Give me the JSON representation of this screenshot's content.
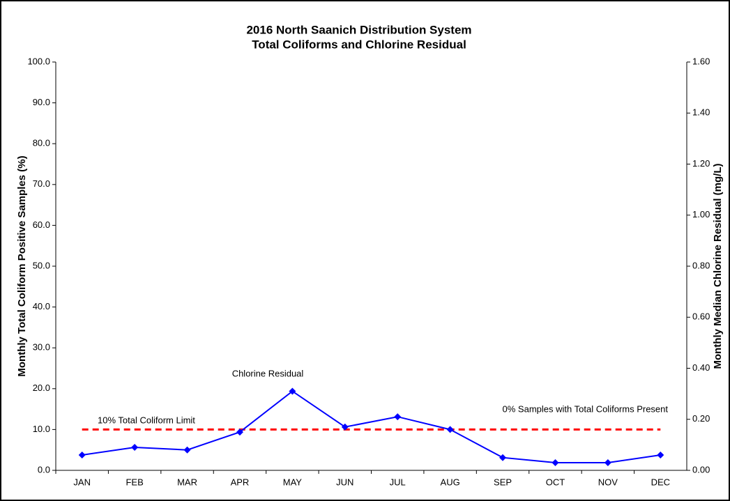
{
  "chart_data": {
    "type": "line",
    "title": "2016 North Saanich Distribution System",
    "subtitle": "Total Coliforms and Chlorine Residual",
    "ylabel": "Monthly Total Coliform Positive Samples (%)",
    "y2label": "Monthly Median Chlorine Residual (mg/L)",
    "categories": [
      "JAN",
      "FEB",
      "MAR",
      "APR",
      "MAY",
      "JUN",
      "JUL",
      "AUG",
      "SEP",
      "OCT",
      "NOV",
      "DEC"
    ],
    "series": [
      {
        "name": "10% Total Coliform Limit",
        "color": "#ff0000",
        "dashed": true,
        "axis": "y",
        "values": [
          10,
          10,
          10,
          10,
          10,
          10,
          10,
          10,
          10,
          10,
          10,
          10
        ]
      },
      {
        "name": "Chlorine Residual",
        "color": "#0000ff",
        "marker": "diamond",
        "axis": "y2",
        "values": [
          0.06,
          0.09,
          0.08,
          0.15,
          0.31,
          0.17,
          0.21,
          0.16,
          0.05,
          0.03,
          0.03,
          0.06
        ]
      }
    ],
    "annotations": [
      "0% Samples with Total Coliforms Present"
    ],
    "ylim": [
      0,
      100
    ],
    "yticks": [
      {
        "value": 0,
        "label": "0.0"
      },
      {
        "value": 10,
        "label": "10.0"
      },
      {
        "value": 20,
        "label": "20.0"
      },
      {
        "value": 30,
        "label": "30.0"
      },
      {
        "value": 40,
        "label": "40.0"
      },
      {
        "value": 50,
        "label": "50.0"
      },
      {
        "value": 60,
        "label": "60.0"
      },
      {
        "value": 70,
        "label": "70.0"
      },
      {
        "value": 80,
        "label": "80.0"
      },
      {
        "value": 90,
        "label": "90.0"
      },
      {
        "value": 100,
        "label": "100.0"
      }
    ],
    "y2lim": [
      0,
      1.6
    ],
    "y2ticks": [
      {
        "value": 0,
        "label": "0.00"
      },
      {
        "value": 0.2,
        "label": "0.20"
      },
      {
        "value": 0.4,
        "label": "0.40"
      },
      {
        "value": 0.6,
        "label": "0.60"
      },
      {
        "value": 0.8,
        "label": "0.80"
      },
      {
        "value": 1.0,
        "label": "1.00"
      },
      {
        "value": 1.2,
        "label": "1.20"
      },
      {
        "value": 1.4,
        "label": "1.40"
      },
      {
        "value": 1.6,
        "label": "1.60"
      }
    ],
    "grid": false
  }
}
